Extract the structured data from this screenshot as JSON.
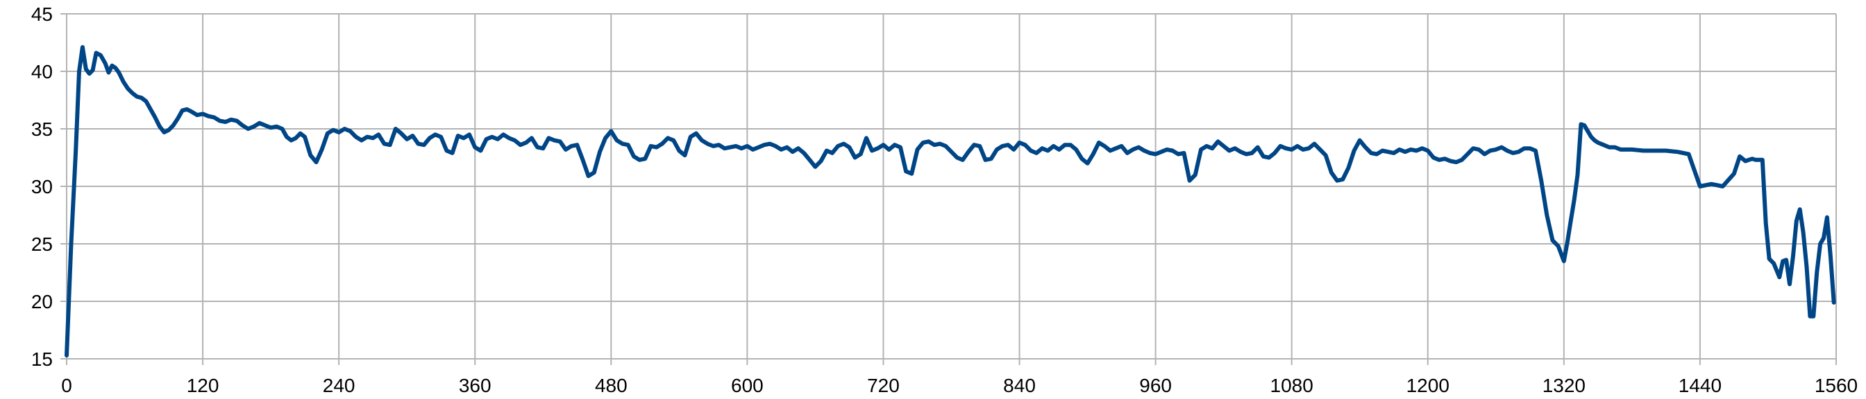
{
  "chart_data": {
    "type": "line",
    "title": "",
    "xlabel": "",
    "ylabel": "",
    "xlim": [
      0,
      1560
    ],
    "ylim": [
      15,
      45
    ],
    "x_ticks": [
      0,
      120,
      240,
      360,
      480,
      600,
      720,
      840,
      960,
      1080,
      1200,
      1320,
      1440,
      1560
    ],
    "y_ticks": [
      15,
      20,
      25,
      30,
      35,
      40,
      45
    ],
    "grid": true,
    "legend": "none",
    "colors": {
      "series": "#004586",
      "grid": "#b3b3b3",
      "background": "#ffffff"
    },
    "series": [
      {
        "x": [
          0,
          4,
          8,
          11,
          14,
          17,
          20,
          23,
          26,
          30,
          34,
          37,
          40,
          43,
          46,
          50,
          54,
          58,
          62,
          66,
          70,
          74,
          78,
          82,
          86,
          90,
          94,
          98,
          102,
          106,
          110,
          115,
          120,
          125,
          130,
          135,
          140,
          145,
          150,
          155,
          160,
          165,
          170,
          175,
          180,
          185,
          190,
          194,
          198,
          202,
          206,
          210,
          215,
          220,
          225,
          230,
          235,
          240,
          245,
          250,
          255,
          260,
          265,
          270,
          275,
          280,
          285,
          290,
          295,
          300,
          305,
          310,
          315,
          320,
          325,
          330,
          335,
          340,
          345,
          350,
          355,
          360,
          365,
          370,
          375,
          380,
          385,
          390,
          395,
          400,
          405,
          410,
          415,
          420,
          425,
          430,
          435,
          440,
          445,
          450,
          455,
          460,
          465,
          470,
          475,
          480,
          485,
          490,
          495,
          500,
          505,
          510,
          515,
          520,
          525,
          530,
          535,
          540,
          545,
          550,
          555,
          560,
          565,
          570,
          575,
          580,
          585,
          590,
          595,
          600,
          605,
          610,
          615,
          620,
          625,
          630,
          635,
          640,
          645,
          650,
          655,
          660,
          665,
          670,
          675,
          680,
          685,
          690,
          695,
          700,
          705,
          710,
          715,
          720,
          725,
          730,
          735,
          740,
          745,
          750,
          755,
          760,
          765,
          770,
          775,
          780,
          785,
          790,
          795,
          800,
          805,
          810,
          815,
          820,
          825,
          830,
          835,
          840,
          845,
          850,
          855,
          860,
          865,
          870,
          875,
          880,
          885,
          890,
          895,
          900,
          905,
          910,
          915,
          920,
          925,
          930,
          935,
          940,
          945,
          950,
          955,
          960,
          965,
          970,
          975,
          980,
          985,
          990,
          995,
          1000,
          1005,
          1010,
          1015,
          1020,
          1025,
          1030,
          1035,
          1040,
          1045,
          1050,
          1055,
          1060,
          1065,
          1070,
          1075,
          1080,
          1085,
          1090,
          1095,
          1100,
          1105,
          1110,
          1115,
          1120,
          1125,
          1130,
          1135,
          1140,
          1145,
          1150,
          1155,
          1160,
          1165,
          1170,
          1175,
          1180,
          1185,
          1190,
          1195,
          1200,
          1205,
          1210,
          1215,
          1220,
          1225,
          1230,
          1235,
          1240,
          1245,
          1250,
          1255,
          1260,
          1265,
          1270,
          1275,
          1280,
          1285,
          1290,
          1295,
          1300,
          1305,
          1310,
          1315,
          1320,
          1323,
          1326,
          1329,
          1332,
          1335,
          1338,
          1341,
          1344,
          1347,
          1350,
          1355,
          1360,
          1365,
          1370,
          1380,
          1390,
          1400,
          1410,
          1420,
          1430,
          1440,
          1450,
          1460,
          1470,
          1475,
          1480,
          1483,
          1486,
          1489,
          1492,
          1495,
          1498,
          1501,
          1505,
          1510,
          1513,
          1516,
          1519,
          1522,
          1525,
          1528,
          1531,
          1534,
          1537,
          1540,
          1543,
          1546,
          1549,
          1552,
          1555,
          1558
        ],
        "values": [
          15.3,
          25,
          33,
          40,
          42.1,
          40.2,
          39.8,
          40.1,
          41.6,
          41.4,
          40.7,
          39.9,
          40.5,
          40.3,
          39.9,
          39.1,
          38.5,
          38.1,
          37.8,
          37.7,
          37.4,
          36.7,
          36,
          35.2,
          34.7,
          34.9,
          35.3,
          35.9,
          36.6,
          36.7,
          36.5,
          36.2,
          36.3,
          36.1,
          36,
          35.7,
          35.6,
          35.8,
          35.7,
          35.3,
          35,
          35.2,
          35.5,
          35.3,
          35.1,
          35.2,
          35,
          34.3,
          34,
          34.2,
          34.6,
          34.3,
          32.7,
          32.1,
          33.2,
          34.6,
          34.9,
          34.7,
          35,
          34.8,
          34.3,
          34,
          34.3,
          34.2,
          34.5,
          33.7,
          33.6,
          35,
          34.6,
          34.1,
          34.4,
          33.7,
          33.6,
          34.2,
          34.5,
          34.3,
          33.1,
          32.9,
          34.4,
          34.2,
          34.5,
          33.4,
          33.1,
          34.1,
          34.3,
          34.1,
          34.5,
          34.2,
          34,
          33.6,
          33.8,
          34.2,
          33.4,
          33.3,
          34.2,
          34,
          33.9,
          33.2,
          33.5,
          33.6,
          32.3,
          30.9,
          31.2,
          33,
          34.2,
          34.8,
          34,
          33.7,
          33.6,
          32.6,
          32.3,
          32.4,
          33.5,
          33.4,
          33.7,
          34.2,
          34,
          33.1,
          32.7,
          34.3,
          34.6,
          34,
          33.7,
          33.5,
          33.6,
          33.3,
          33.4,
          33.5,
          33.3,
          33.5,
          33.2,
          33.4,
          33.6,
          33.7,
          33.5,
          33.2,
          33.4,
          33,
          33.3,
          32.9,
          32.3,
          31.7,
          32.2,
          33.1,
          32.9,
          33.5,
          33.7,
          33.4,
          32.5,
          32.8,
          34.2,
          33.1,
          33.3,
          33.6,
          33.2,
          33.6,
          33.4,
          31.3,
          31.1,
          33.2,
          33.8,
          33.9,
          33.6,
          33.7,
          33.5,
          33,
          32.5,
          32.3,
          33,
          33.6,
          33.5,
          32.3,
          32.4,
          33.2,
          33.5,
          33.6,
          33.2,
          33.8,
          33.6,
          33.1,
          32.9,
          33.3,
          33.1,
          33.5,
          33.2,
          33.6,
          33.6,
          33.2,
          32.4,
          32,
          32.8,
          33.8,
          33.5,
          33.1,
          33.3,
          33.5,
          32.9,
          33.2,
          33.4,
          33.1,
          32.9,
          32.8,
          33,
          33.2,
          33.1,
          32.8,
          32.9,
          30.5,
          31,
          33.2,
          33.5,
          33.3,
          33.9,
          33.5,
          33.1,
          33.3,
          33,
          32.8,
          32.9,
          33.4,
          32.6,
          32.5,
          32.9,
          33.5,
          33.3,
          33.2,
          33.5,
          33.2,
          33.3,
          33.7,
          33.2,
          32.7,
          31.2,
          30.5,
          30.6,
          31.6,
          33.1,
          34,
          33.4,
          32.9,
          32.8,
          33.1,
          33,
          32.9,
          33.2,
          33,
          33.2,
          33.1,
          33.3,
          33.1,
          32.5,
          32.3,
          32.4,
          32.2,
          32.1,
          32.3,
          32.8,
          33.3,
          33.2,
          32.8,
          33.1,
          33.2,
          33.4,
          33.1,
          32.9,
          33,
          33.3,
          33.3,
          33.1,
          30.5,
          27.5,
          25.3,
          24.8,
          23.5,
          25.1,
          27,
          28.8,
          31,
          35.4,
          35.3,
          34.8,
          34.3,
          34,
          33.8,
          33.6,
          33.4,
          33.4,
          33.2,
          33.2,
          33.1,
          33.1,
          33.1,
          33,
          32.8,
          30,
          30.2,
          30,
          31.1,
          32.6,
          32.2,
          32.3,
          32.4,
          32.3,
          32.3,
          32.3,
          26.8,
          23.7,
          23.3,
          22.1,
          23.5,
          23.6,
          21.5,
          23.9,
          27,
          28,
          26,
          23,
          18.7,
          18.7,
          22.5,
          25,
          25.5,
          27.3,
          24,
          19.9
        ]
      }
    ]
  }
}
